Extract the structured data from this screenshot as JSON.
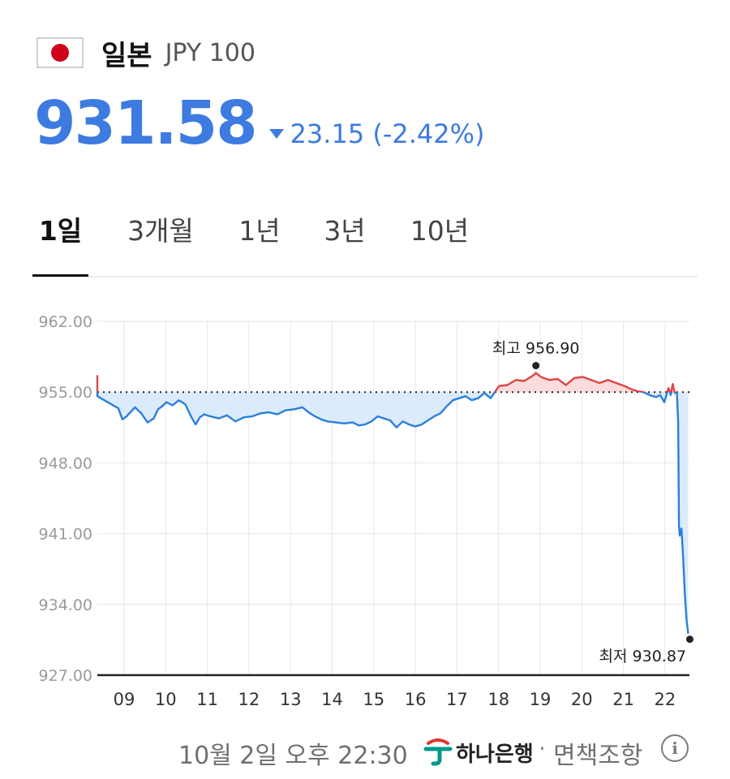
{
  "header": {
    "flag_icon": "japan-flag-icon",
    "country": "일본",
    "code": "JPY 100"
  },
  "quote": {
    "price": "931.58",
    "direction": "down",
    "change": "23.15 (-2.42%)",
    "color": "#3d7be0"
  },
  "tabs": [
    {
      "label": "1일",
      "active": true
    },
    {
      "label": "3개월",
      "active": false
    },
    {
      "label": "1년",
      "active": false
    },
    {
      "label": "3년",
      "active": false
    },
    {
      "label": "10년",
      "active": false
    }
  ],
  "chart_data": {
    "type": "line",
    "reference_value": 955.0,
    "ylim": [
      927.0,
      962.0
    ],
    "y_ticks": [
      "962.00",
      "955.00",
      "948.00",
      "941.00",
      "934.00",
      "927.00"
    ],
    "y_tick_values": [
      962,
      955,
      948,
      941,
      934,
      927
    ],
    "x_ticks": [
      "09",
      "10",
      "11",
      "12",
      "13",
      "14",
      "15",
      "16",
      "17",
      "18",
      "19",
      "20",
      "21",
      "22"
    ],
    "xlim": [
      8.4,
      22.55
    ],
    "colors": {
      "below": "#2a7fdc",
      "above": "#e04545",
      "below_fill": "#dcebfb",
      "above_fill": "#fbdcdc"
    },
    "series": [
      {
        "x": [
          8.4,
          8.4,
          8.4,
          8.65,
          8.9,
          9.0,
          9.1,
          9.3,
          9.45,
          9.6,
          9.75,
          9.85,
          9.95,
          10.05,
          10.2,
          10.35,
          10.5,
          10.65,
          10.75,
          10.85,
          10.95,
          11.1,
          11.3,
          11.5,
          11.7,
          11.9,
          12.1,
          12.3,
          12.5,
          12.7,
          12.9,
          13.1,
          13.3,
          13.45,
          13.6,
          13.75,
          13.9,
          14.1,
          14.3,
          14.5,
          14.65,
          14.8,
          14.95,
          15.1,
          15.25,
          15.4,
          15.55,
          15.7,
          15.85,
          16.0,
          16.15,
          16.3,
          16.45,
          16.6,
          16.75,
          16.9,
          17.05,
          17.2,
          17.35,
          17.5,
          17.65,
          17.8,
          18.0,
          18.2,
          18.4,
          18.6,
          18.8,
          18.88,
          19.0,
          19.2,
          19.4,
          19.6,
          19.8,
          20.0,
          20.2,
          20.4,
          20.6,
          20.8,
          21.0,
          21.15,
          21.3,
          21.45,
          21.6,
          21.75,
          21.85,
          21.95,
          22.05,
          22.1,
          22.15,
          22.2,
          22.25,
          22.28,
          22.3,
          22.32,
          22.36,
          22.4,
          22.44,
          22.48,
          22.52
        ],
        "y": [
          955.0,
          956.6,
          954.6,
          954.0,
          953.4,
          952.3,
          952.6,
          953.5,
          952.9,
          952.0,
          952.4,
          953.3,
          953.6,
          954.0,
          953.7,
          954.2,
          953.8,
          952.5,
          951.8,
          952.5,
          952.8,
          952.6,
          952.4,
          952.7,
          952.1,
          952.5,
          952.6,
          952.9,
          953.0,
          952.8,
          953.2,
          953.3,
          953.5,
          953.0,
          952.6,
          952.3,
          952.1,
          952.0,
          951.9,
          952.0,
          951.7,
          951.8,
          952.1,
          952.6,
          952.4,
          952.2,
          951.5,
          952.1,
          951.8,
          951.6,
          951.8,
          952.2,
          952.6,
          952.9,
          953.6,
          954.2,
          954.4,
          954.6,
          954.2,
          954.4,
          954.9,
          954.4,
          955.6,
          955.7,
          956.2,
          956.1,
          956.6,
          956.9,
          956.5,
          956.2,
          956.3,
          955.7,
          956.4,
          956.5,
          956.2,
          955.9,
          956.2,
          955.9,
          955.6,
          955.3,
          955.1,
          955.0,
          954.7,
          954.5,
          954.7,
          954.0,
          955.4,
          954.7,
          955.8,
          954.9,
          955.0,
          952.0,
          941.8,
          940.8,
          941.5,
          938.5,
          935.0,
          932.5,
          931.1
        ]
      }
    ],
    "annotations": [
      {
        "label": "최고 956.90",
        "x": 18.88,
        "y": 956.9
      },
      {
        "label": "최저 930.87",
        "x": 22.52,
        "y": 930.87
      }
    ]
  },
  "footer": {
    "timestamp": "10월 2일 오후 22:30",
    "bank_icon": "hana-bank-logo-icon",
    "bank": "하나은행",
    "separator": "·",
    "disclaimer": "면책조항",
    "info_icon": "info-icon",
    "info_glyph": "i"
  }
}
